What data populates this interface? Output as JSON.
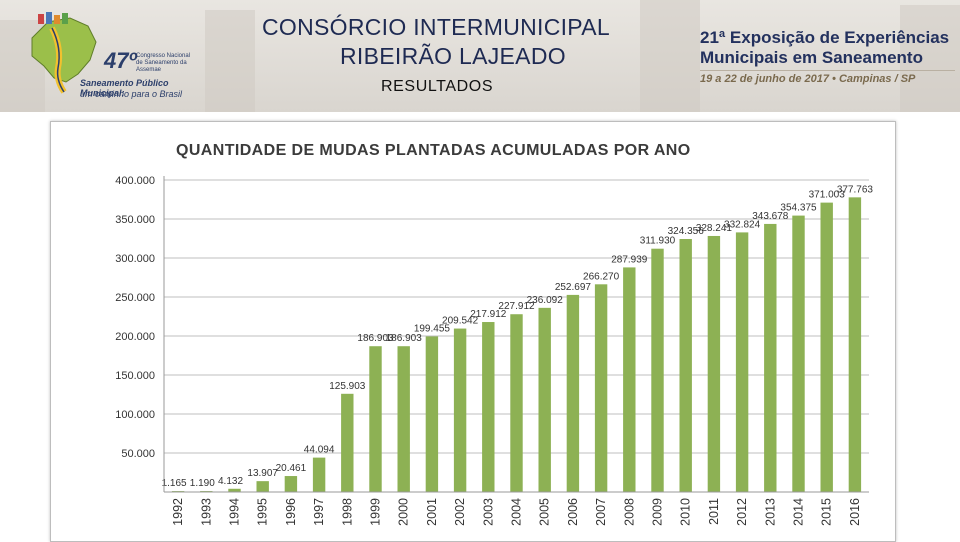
{
  "header": {
    "title_line1": "CONSÓRCIO INTERMUNICIPAL",
    "title_line2": "RIBEIRÃO LAJEADO",
    "subtitle": "RESULTADOS"
  },
  "logo_left": {
    "number": "47º",
    "small_text": "Congresso Nacional de Saneamento da Assemae",
    "tagline1": "Saneamento Público Municipal:",
    "tagline2": "um caminho para o Brasil"
  },
  "logo_right": {
    "line1": "21ª Exposição de Experiências",
    "line2": "Municipais em Saneamento",
    "line3": "19 a 22 de junho de 2017 • Campinas / SP"
  },
  "colors": {
    "bar": "#8db154",
    "grid": "#bfbfbf",
    "title_text": "#1e2a52"
  },
  "chart_data": {
    "type": "bar",
    "title": "QUANTIDADE DE MUDAS PLANTADAS ACUMULADAS POR ANO",
    "xlabel": "",
    "ylabel": "",
    "ylim": [
      0,
      400000
    ],
    "grid": true,
    "legend": "none",
    "yticks": [
      "400.000",
      "350.000",
      "300.000",
      "250.000",
      "200.000",
      "150.000",
      "100.000",
      "50.000"
    ],
    "categories": [
      "1992",
      "1993",
      "1994",
      "1995",
      "1996",
      "1997",
      "1998",
      "1999",
      "2000",
      "2001",
      "2002",
      "2003",
      "2004",
      "2005",
      "2006",
      "2007",
      "2008",
      "2009",
      "2010",
      "2011",
      "2012",
      "2013",
      "2014",
      "2015",
      "2016"
    ],
    "values": [
      1165,
      1190,
      4132,
      13907,
      20461,
      44094,
      125903,
      186903,
      186903,
      199455,
      209542,
      217912,
      227912,
      236092,
      252697,
      266270,
      287939,
      311930,
      324356,
      328241,
      332824,
      343678,
      354375,
      371003,
      377763
    ],
    "labels": [
      "1.165",
      "1.190",
      "4.132",
      "13.907",
      "20.461",
      "44.094",
      "125.903",
      "186.903",
      "186.903",
      "199.455",
      "209.542",
      "217.912",
      "227.912",
      "236.092",
      "252.697",
      "266.270",
      "287.939",
      "311.930",
      "324.356",
      "328.241",
      "332.824",
      "343.678",
      "354.375",
      "371.003",
      "377.763"
    ]
  }
}
